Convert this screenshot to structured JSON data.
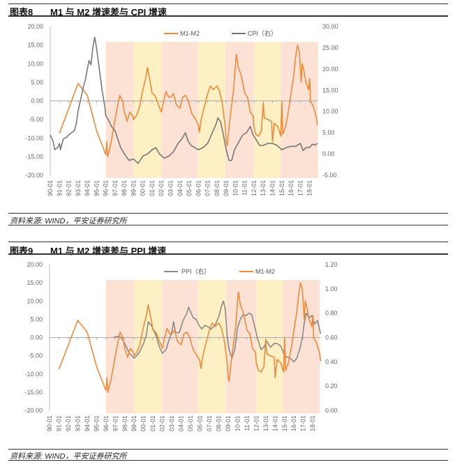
{
  "figures": [
    {
      "label": "图表8",
      "title": "M1 与 M2 增速差与 CPI 增速",
      "source": "资料来源: WIND，平安证券研究所"
    },
    {
      "label": "图表9",
      "title": "M1 与 M2 增速差与 PPI 增速",
      "source": "资料来源: WIND，平安证券研究所"
    }
  ],
  "chart_data": [
    {
      "type": "line",
      "title": "M1 与 M2 增速差与 CPI 增速",
      "x_ticks": [
        "90-01",
        "91-01",
        "92-01",
        "93-01",
        "94-01",
        "95-01",
        "96-01",
        "97-01",
        "98-01",
        "99-01",
        "00-01",
        "01-01",
        "02-01",
        "03-01",
        "04-01",
        "05-01",
        "06-01",
        "07-01",
        "08-01",
        "09-01",
        "10-01",
        "11-01",
        "12-01",
        "13-01",
        "14-01",
        "15-01",
        "16-01",
        "17-01",
        "18-01"
      ],
      "y_left": {
        "range": [
          -20,
          20
        ],
        "ticks": [
          "20.00",
          "15.00",
          "10.00",
          "5.00",
          "0.00",
          "-5.00",
          "-10.00",
          "-15.00",
          "-20.00"
        ]
      },
      "y_right": {
        "range": [
          -5,
          30
        ],
        "ticks": [
          "30.00",
          "25.00",
          "20.00",
          "15.00",
          "10.00",
          "5.00",
          "0.00",
          "-5.00"
        ]
      },
      "legend": {
        "placement": "top-center",
        "entries": [
          "M1-M2",
          "CPI（右）"
        ]
      },
      "shaded_periods": [
        {
          "from": 1996.0,
          "to": 1999.0,
          "color": "#fbe2d5"
        },
        {
          "from": 1999.0,
          "to": 2002.0,
          "color": "#fdf0c4"
        },
        {
          "from": 2002.0,
          "to": 2005.9,
          "color": "#fbe2d5"
        },
        {
          "from": 2005.9,
          "to": 2008.9,
          "color": "#fdf0c4"
        },
        {
          "from": 2008.9,
          "to": 2012.0,
          "color": "#fbe2d5"
        },
        {
          "from": 2012.0,
          "to": 2014.9,
          "color": "#fdf0c4"
        },
        {
          "from": 2014.9,
          "to": 2018.9,
          "color": "#fbe2d5"
        }
      ],
      "series": [
        {
          "name": "M1-M2",
          "axis": "left",
          "color": "#ee8a3a",
          "x_unit": "year",
          "points": "m1m2"
        },
        {
          "name": "CPI（右）",
          "axis": "right",
          "color": "#777777",
          "x_unit": "year",
          "points": "cpi"
        }
      ]
    },
    {
      "type": "line",
      "title": "M1 与 M2 增速差与 PPI 增速",
      "x_ticks": [
        "90-01",
        "91-01",
        "92-01",
        "93-01",
        "94-01",
        "95-01",
        "96-01",
        "97-01",
        "98-01",
        "99-01",
        "00-01",
        "01-01",
        "02-01",
        "03-01",
        "04-01",
        "05-01",
        "06-01",
        "07-01",
        "08-01",
        "09-01",
        "10-01",
        "11-01",
        "12-01",
        "13-01",
        "14-01",
        "15-01",
        "16-01",
        "17-01",
        "18-01"
      ],
      "y_left": {
        "range": [
          -20,
          20
        ],
        "ticks": [
          "20.00",
          "15.00",
          "10.00",
          "5.00",
          "0.00",
          "-5.00",
          "-10.00",
          "-15.00",
          "-20.00"
        ]
      },
      "y_right": {
        "range": [
          0,
          1.2
        ],
        "ticks": [
          "1.20",
          "1.00",
          "0.80",
          "0.60",
          "0.40",
          "0.20",
          "0.00"
        ]
      },
      "legend": {
        "placement": "top-center",
        "entries": [
          "PPI（右）",
          "M1-M2"
        ]
      },
      "shaded_periods": [
        {
          "from": 1996.0,
          "to": 1999.0,
          "color": "#fbe2d5"
        },
        {
          "from": 1999.0,
          "to": 2002.0,
          "color": "#fdf0c4"
        },
        {
          "from": 2002.0,
          "to": 2005.8,
          "color": "#fbe2d5"
        },
        {
          "from": 2005.8,
          "to": 2008.8,
          "color": "#fdf0c4"
        },
        {
          "from": 2008.8,
          "to": 2012.0,
          "color": "#fbe2d5"
        },
        {
          "from": 2012.0,
          "to": 2014.8,
          "color": "#fdf0c4"
        },
        {
          "from": 2014.8,
          "to": 2018.75,
          "color": "#fbe2d5"
        }
      ],
      "series": [
        {
          "name": "PPI（右）",
          "axis": "right",
          "color": "#888888",
          "x_unit": "year",
          "points": "ppi"
        },
        {
          "name": "M1-M2",
          "axis": "left",
          "color": "#ee8a3a",
          "x_unit": "year",
          "points": "m1m2"
        }
      ]
    }
  ],
  "series_values": {
    "m1m2": [
      [
        1991.0,
        -8.7
      ],
      [
        1993.0,
        4.7
      ],
      [
        1994.0,
        1.5
      ],
      [
        1995.0,
        -8
      ],
      [
        1996.0,
        -14.5
      ],
      [
        1996.1,
        -11
      ],
      [
        1996.2,
        -15
      ],
      [
        1996.5,
        -12
      ],
      [
        1997.0,
        -5
      ],
      [
        1997.3,
        -1
      ],
      [
        1997.5,
        1.5
      ],
      [
        1997.8,
        0
      ],
      [
        1998.0,
        -3
      ],
      [
        1998.3,
        -5.5
      ],
      [
        1998.6,
        -3
      ],
      [
        1998.9,
        -4
      ],
      [
        1999.0,
        -5
      ],
      [
        1999.3,
        -4
      ],
      [
        1999.6,
        -2
      ],
      [
        2000.0,
        3
      ],
      [
        2000.3,
        6
      ],
      [
        2000.5,
        9
      ],
      [
        2000.8,
        5
      ],
      [
        2001.0,
        2
      ],
      [
        2001.3,
        1.5
      ],
      [
        2001.6,
        -0.5
      ],
      [
        2002.0,
        -3
      ],
      [
        2002.3,
        0.5
      ],
      [
        2002.5,
        2.5
      ],
      [
        2002.8,
        1
      ],
      [
        2003.0,
        1
      ],
      [
        2003.3,
        2
      ],
      [
        2003.6,
        -1
      ],
      [
        2004.0,
        -2
      ],
      [
        2004.3,
        1
      ],
      [
        2004.6,
        1.5
      ],
      [
        2004.9,
        0
      ],
      [
        2005.3,
        -3.5
      ],
      [
        2005.7,
        -5
      ],
      [
        2006.0,
        -6.5
      ],
      [
        2006.1,
        -8.5
      ],
      [
        2006.3,
        -5
      ],
      [
        2006.6,
        -2
      ],
      [
        2007.0,
        2
      ],
      [
        2007.3,
        4
      ],
      [
        2007.6,
        3
      ],
      [
        2008.0,
        4
      ],
      [
        2008.3,
        2.5
      ],
      [
        2008.6,
        -1
      ],
      [
        2008.9,
        -7
      ],
      [
        2009.0,
        -11
      ],
      [
        2009.1,
        -12
      ],
      [
        2009.4,
        -5
      ],
      [
        2009.8,
        3
      ],
      [
        2010.0,
        10
      ],
      [
        2010.1,
        12.5
      ],
      [
        2010.3,
        9
      ],
      [
        2010.6,
        7
      ],
      [
        2011.0,
        2
      ],
      [
        2011.3,
        1
      ],
      [
        2011.6,
        -3
      ],
      [
        2011.9,
        -4
      ],
      [
        2012.0,
        -7
      ],
      [
        2012.2,
        -9
      ],
      [
        2012.5,
        -9.5
      ],
      [
        2012.8,
        -8
      ],
      [
        2013.0,
        -0.5
      ],
      [
        2013.1,
        -4.5
      ],
      [
        2013.5,
        -5
      ],
      [
        2013.9,
        -5.5
      ],
      [
        2014.0,
        -11
      ],
      [
        2014.2,
        -6
      ],
      [
        2014.6,
        -7
      ],
      [
        2014.9,
        -9.5
      ],
      [
        2015.0,
        0
      ],
      [
        2015.1,
        -9
      ],
      [
        2015.4,
        -7
      ],
      [
        2015.7,
        -3
      ],
      [
        2016.0,
        2
      ],
      [
        2016.3,
        7
      ],
      [
        2016.5,
        12
      ],
      [
        2016.7,
        15
      ],
      [
        2016.9,
        13
      ],
      [
        2017.1,
        5
      ],
      [
        2017.2,
        10
      ],
      [
        2017.4,
        8
      ],
      [
        2017.6,
        5
      ],
      [
        2017.9,
        3
      ],
      [
        2018.0,
        6
      ],
      [
        2018.1,
        0
      ],
      [
        2018.4,
        -1.5
      ],
      [
        2018.7,
        -4
      ],
      [
        2018.85,
        -6.5
      ]
    ],
    "cpi": [
      [
        1990.0,
        4.5
      ],
      [
        1990.3,
        3
      ],
      [
        1990.5,
        1
      ],
      [
        1990.8,
        1.5
      ],
      [
        1991.0,
        2.5
      ],
      [
        1991.1,
        1
      ],
      [
        1991.4,
        3.5
      ],
      [
        1991.8,
        4
      ],
      [
        1992.0,
        4.5
      ],
      [
        1992.3,
        5
      ],
      [
        1992.6,
        5.5
      ],
      [
        1992.8,
        7
      ],
      [
        1993.0,
        10
      ],
      [
        1993.3,
        13
      ],
      [
        1993.6,
        16
      ],
      [
        1993.8,
        17.5
      ],
      [
        1994.0,
        20
      ],
      [
        1994.2,
        22
      ],
      [
        1994.4,
        21
      ],
      [
        1994.6,
        25
      ],
      [
        1994.8,
        27.5
      ],
      [
        1995.0,
        25
      ],
      [
        1995.3,
        20
      ],
      [
        1995.6,
        15
      ],
      [
        1995.9,
        11
      ],
      [
        1996.0,
        9
      ],
      [
        1996.3,
        8
      ],
      [
        1996.6,
        6.5
      ],
      [
        1997.0,
        5.5
      ],
      [
        1997.3,
        3.5
      ],
      [
        1997.6,
        1.5
      ],
      [
        1998.0,
        0
      ],
      [
        1998.5,
        -1.5
      ],
      [
        1999.0,
        -1.2
      ],
      [
        1999.5,
        -2.2
      ],
      [
        2000.0,
        -0.5
      ],
      [
        2000.5,
        0
      ],
      [
        2001.0,
        1
      ],
      [
        2001.4,
        1.5
      ],
      [
        2001.8,
        0
      ],
      [
        2002.3,
        -1
      ],
      [
        2002.8,
        -0.5
      ],
      [
        2003.3,
        0.5
      ],
      [
        2003.8,
        2.5
      ],
      [
        2004.2,
        3.5
      ],
      [
        2004.6,
        5
      ],
      [
        2004.9,
        3
      ],
      [
        2005.2,
        2
      ],
      [
        2005.6,
        1.5
      ],
      [
        2006.0,
        1
      ],
      [
        2006.5,
        1.5
      ],
      [
        2007.0,
        2.5
      ],
      [
        2007.5,
        5
      ],
      [
        2007.9,
        7
      ],
      [
        2008.1,
        8.5
      ],
      [
        2008.4,
        7.5
      ],
      [
        2008.7,
        4.5
      ],
      [
        2009.0,
        1
      ],
      [
        2009.3,
        -1.5
      ],
      [
        2009.6,
        -1.5
      ],
      [
        2009.9,
        1
      ],
      [
        2010.4,
        3
      ],
      [
        2010.8,
        4.5
      ],
      [
        2011.2,
        5
      ],
      [
        2011.6,
        6.5
      ],
      [
        2011.9,
        4.5
      ],
      [
        2012.2,
        3.5
      ],
      [
        2012.6,
        2
      ],
      [
        2013.0,
        2
      ],
      [
        2013.5,
        2.5
      ],
      [
        2014.0,
        2.5
      ],
      [
        2014.5,
        2
      ],
      [
        2015.0,
        1
      ],
      [
        2015.5,
        1.5
      ],
      [
        2016.0,
        1.8
      ],
      [
        2016.5,
        1.8
      ],
      [
        2017.0,
        2.5
      ],
      [
        2017.3,
        0.8
      ],
      [
        2017.6,
        1.5
      ],
      [
        2018.0,
        1.5
      ],
      [
        2018.3,
        2.3
      ],
      [
        2018.6,
        2.1
      ],
      [
        2018.85,
        2.5
      ]
    ],
    "ppi": [
      [
        1996.8,
        0.6
      ],
      [
        1997.3,
        0.61
      ],
      [
        1997.6,
        0.6
      ],
      [
        1998.0,
        0.55
      ],
      [
        1998.5,
        0.47
      ],
      [
        1999.0,
        0.43
      ],
      [
        1999.5,
        0.47
      ],
      [
        2000.0,
        0.55
      ],
      [
        2000.3,
        0.62
      ],
      [
        2000.5,
        0.73
      ],
      [
        2000.9,
        0.69
      ],
      [
        2001.3,
        0.62
      ],
      [
        2001.7,
        0.52
      ],
      [
        2002.0,
        0.47
      ],
      [
        2002.4,
        0.5
      ],
      [
        2002.7,
        0.58
      ],
      [
        2003.0,
        0.64
      ],
      [
        2003.2,
        0.73
      ],
      [
        2003.4,
        0.64
      ],
      [
        2003.8,
        0.64
      ],
      [
        2004.2,
        0.74
      ],
      [
        2004.6,
        0.8
      ],
      [
        2004.8,
        0.85
      ],
      [
        2005.0,
        0.81
      ],
      [
        2005.3,
        0.76
      ],
      [
        2005.6,
        0.75
      ],
      [
        2005.9,
        0.7
      ],
      [
        2006.2,
        0.67
      ],
      [
        2006.5,
        0.7
      ],
      [
        2006.8,
        0.69
      ],
      [
        2007.2,
        0.67
      ],
      [
        2007.6,
        0.7
      ],
      [
        2008.0,
        0.77
      ],
      [
        2008.3,
        0.86
      ],
      [
        2008.5,
        0.9
      ],
      [
        2008.7,
        0.83
      ],
      [
        2008.9,
        0.6
      ],
      [
        2009.1,
        0.5
      ],
      [
        2009.4,
        0.43
      ],
      [
        2009.7,
        0.5
      ],
      [
        2010.0,
        0.68
      ],
      [
        2010.3,
        0.75
      ],
      [
        2010.6,
        0.79
      ],
      [
        2010.9,
        0.78
      ],
      [
        2011.2,
        0.8
      ],
      [
        2011.5,
        0.79
      ],
      [
        2011.8,
        0.7
      ],
      [
        2012.1,
        0.6
      ],
      [
        2012.5,
        0.5
      ],
      [
        2012.8,
        0.52
      ],
      [
        2013.1,
        0.57
      ],
      [
        2013.5,
        0.52
      ],
      [
        2013.9,
        0.55
      ],
      [
        2014.2,
        0.55
      ],
      [
        2014.6,
        0.53
      ],
      [
        2014.9,
        0.47
      ],
      [
        2015.2,
        0.44
      ],
      [
        2015.6,
        0.43
      ],
      [
        2016.0,
        0.4
      ],
      [
        2016.3,
        0.43
      ],
      [
        2016.6,
        0.5
      ],
      [
        2016.9,
        0.6
      ],
      [
        2017.1,
        0.72
      ],
      [
        2017.3,
        0.8
      ],
      [
        2017.6,
        0.76
      ],
      [
        2017.9,
        0.78
      ],
      [
        2018.2,
        0.71
      ],
      [
        2018.5,
        0.74
      ],
      [
        2018.85,
        0.63
      ]
    ]
  }
}
